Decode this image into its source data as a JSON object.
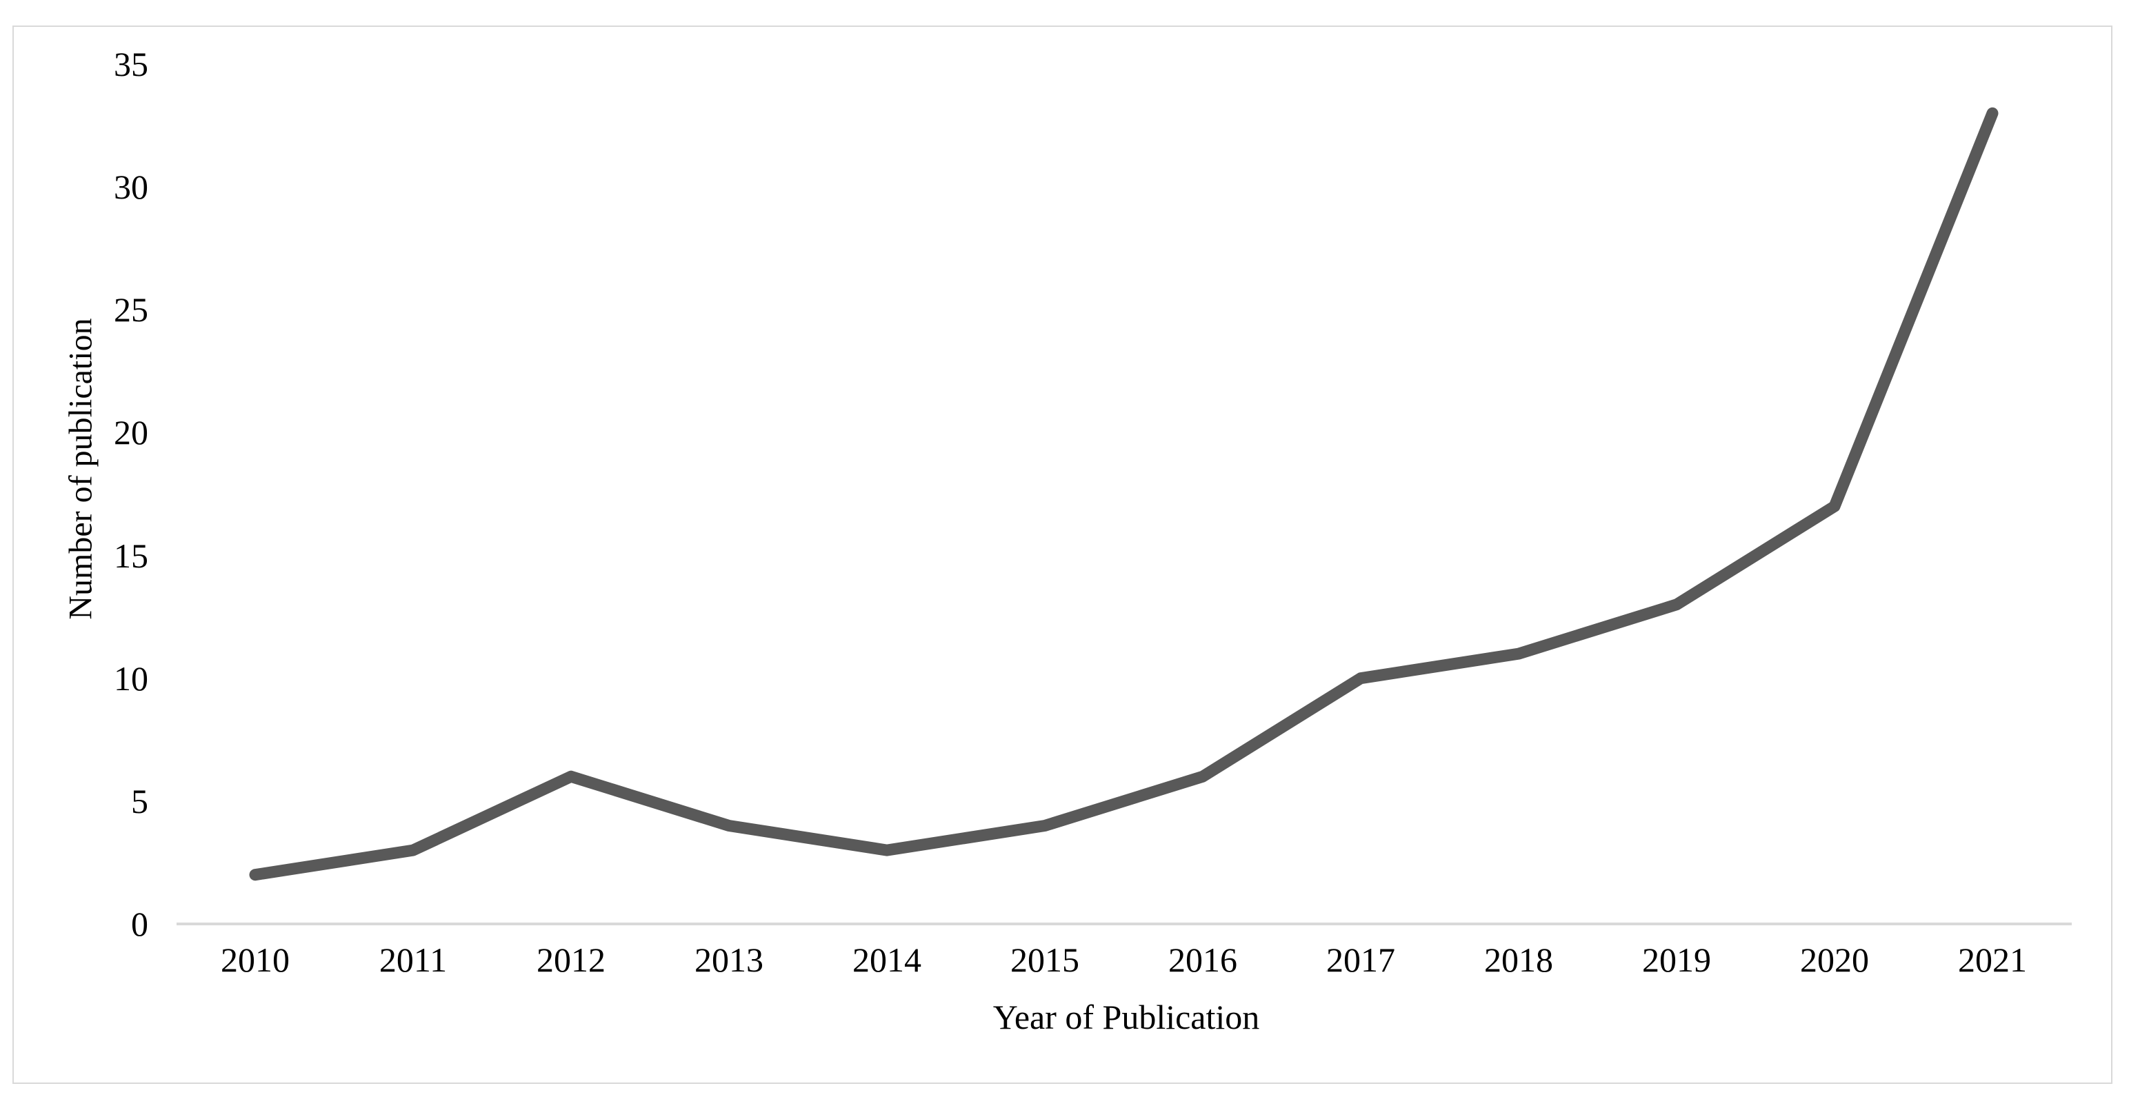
{
  "chart_data": {
    "type": "line",
    "categories": [
      "2010",
      "2011",
      "2012",
      "2013",
      "2014",
      "2015",
      "2016",
      "2017",
      "2018",
      "2019",
      "2020",
      "2021"
    ],
    "values": [
      2,
      3,
      6,
      4,
      3,
      4,
      6,
      10,
      11,
      13,
      17,
      33
    ],
    "xlabel": "Year of Publication",
    "ylabel": "Number of publication",
    "ylim": [
      0,
      35
    ],
    "yticks": [
      0,
      5,
      10,
      15,
      20,
      25,
      30,
      35
    ],
    "grid": false,
    "legend": false,
    "markers": false,
    "line_color": "#595959",
    "axis_line_color": "#d9d9d9",
    "frame_border_color": "#d9d9d9",
    "text_color": "#000000",
    "background_color": "#ffffff"
  }
}
